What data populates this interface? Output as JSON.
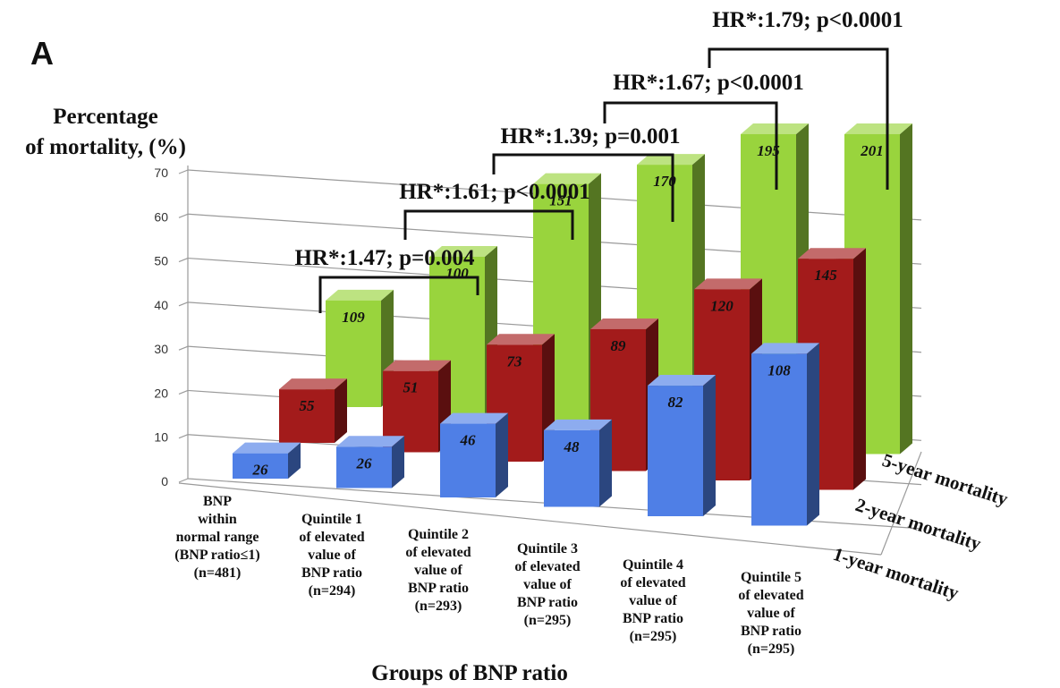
{
  "panel_letter": "A",
  "chart_data": {
    "type": "bar",
    "title": "",
    "ylabel_lines": [
      "Percentage",
      "of mortality, (%)"
    ],
    "xlabel": "Groups of BNP ratio",
    "ylim": [
      0,
      70
    ],
    "yticks": [
      0,
      10,
      20,
      30,
      40,
      50,
      60,
      70
    ],
    "grid": true,
    "categories": [
      [
        "BNP",
        "within",
        "normal range",
        "(BNP ratio≤1)",
        "(n=481)"
      ],
      [
        "Quintile 1",
        "of elevated",
        "value of",
        "BNP ratio",
        "(n=294)"
      ],
      [
        "Quintile 2",
        "of elevated",
        "value of",
        "BNP ratio",
        "(n=293)"
      ],
      [
        "Quintile 3",
        "of elevated",
        "value of",
        "BNP ratio",
        "(n=295)"
      ],
      [
        "Quintile 4",
        "of elevated",
        "value of",
        "BNP ratio",
        "(n=295)"
      ],
      [
        "Quintile 5",
        "of elevated",
        "value of",
        "BNP ratio",
        "(n=295)"
      ]
    ],
    "series": [
      {
        "name": "1-year mortality",
        "color": "#4f7fe6",
        "values": [
          5.4,
          8.8,
          15.7,
          16.3,
          27.8,
          36.6
        ],
        "labels": [
          "26",
          "26",
          "46",
          "48",
          "82",
          "108"
        ]
      },
      {
        "name": "2-year mortality",
        "color": "#a31b1b",
        "values": [
          11.4,
          17.3,
          24.9,
          30.2,
          40.7,
          49.2
        ],
        "labels": [
          "55",
          "51",
          "73",
          "89",
          "120",
          "145"
        ]
      },
      {
        "name": "5-year mortality",
        "color": "#99d43d",
        "values": [
          22.7,
          34.0,
          51.5,
          57.6,
          66.1,
          68.1
        ],
        "labels": [
          "109",
          "100",
          "151",
          "170",
          "195",
          "201"
        ]
      }
    ],
    "annotations": [
      {
        "text": "HR*:1.47; p=0.004",
        "from": 0,
        "to": 1
      },
      {
        "text": "HR*:1.61; p<0.0001",
        "from": 1,
        "to": 2
      },
      {
        "text": "HR*:1.39; p=0.001",
        "from": 2,
        "to": 3
      },
      {
        "text": "HR*:1.67; p<0.0001",
        "from": 3,
        "to": 4
      },
      {
        "text": "HR*:1.79; p<0.0001",
        "from": 4,
        "to": 5
      }
    ]
  }
}
